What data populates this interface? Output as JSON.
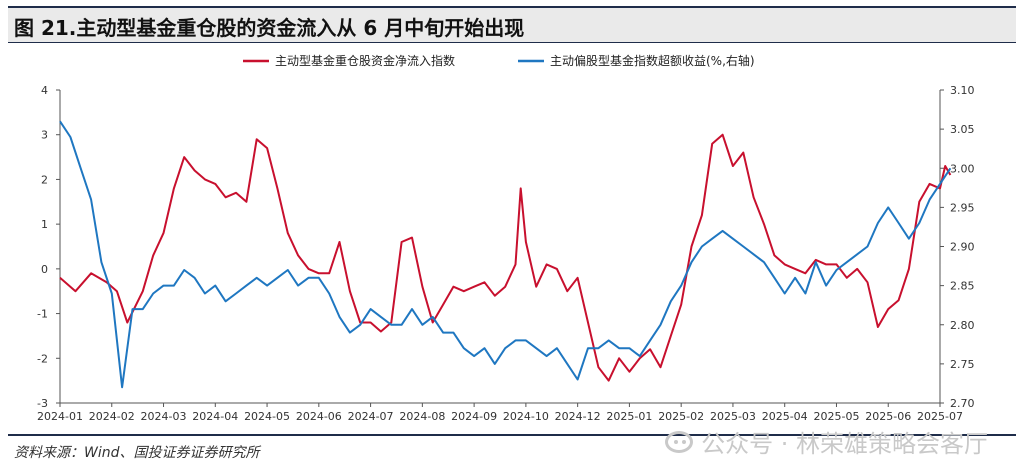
{
  "header": {
    "title": "图 21.主动型基金重仓股的资金流入从 6 月中旬开始出现"
  },
  "footer": {
    "source": "资料来源：Wind、国投证券证券研究所",
    "watermark": "公众号 · 林荣雄策略会客厅"
  },
  "colors": {
    "red": "#c8102e",
    "blue": "#1f77c1"
  },
  "chart_data": {
    "type": "line",
    "x_ticks": [
      "2024-01",
      "2024-02",
      "2024-03",
      "2024-04",
      "2024-05",
      "2024-06",
      "2024-07",
      "2024-08",
      "2024-09",
      "2024-10",
      "2024-12",
      "2025-01",
      "2025-02",
      "2025-03",
      "2025-04",
      "2025-05",
      "2025-06",
      "2025-07"
    ],
    "y_left": {
      "min": -3,
      "max": 4,
      "ticks": [
        4,
        3,
        2,
        1,
        0,
        -1,
        -2,
        -3
      ]
    },
    "y_right": {
      "min": 2.7,
      "max": 3.1,
      "ticks": [
        "3.10",
        "3.05",
        "3.00",
        "2.95",
        "2.90",
        "2.85",
        "2.80",
        "2.75",
        "2.70"
      ]
    },
    "legend_position": "top",
    "series": [
      {
        "name": "主动型基金重仓股资金净流入指数",
        "axis": "left",
        "color": "#c8102e",
        "x": [
          0,
          0.3,
          0.6,
          0.9,
          1.1,
          1.3,
          1.6,
          1.8,
          2.0,
          2.2,
          2.4,
          2.6,
          2.8,
          3.0,
          3.2,
          3.4,
          3.6,
          3.8,
          4.0,
          4.2,
          4.4,
          4.6,
          4.8,
          5.0,
          5.2,
          5.4,
          5.6,
          5.8,
          6.0,
          6.2,
          6.4,
          6.6,
          6.8,
          7.0,
          7.2,
          7.4,
          7.6,
          7.8,
          8.0,
          8.2,
          8.4,
          8.6,
          8.8,
          8.9,
          9.0,
          9.2,
          9.4,
          9.6,
          9.8,
          10.0,
          10.2,
          10.4,
          10.6,
          10.8,
          11.0,
          11.2,
          11.4,
          11.6,
          11.8,
          12.0,
          12.2,
          12.4,
          12.6,
          12.8,
          13.0,
          13.2,
          13.4,
          13.6,
          13.8,
          14.0,
          14.2,
          14.4,
          14.6,
          14.8,
          15.0,
          15.2,
          15.4,
          15.6,
          15.8,
          16.0,
          16.2,
          16.4,
          16.6,
          16.8,
          17.0,
          17.1,
          17.2
        ],
        "values": [
          -0.2,
          -0.5,
          -0.1,
          -0.3,
          -0.5,
          -1.2,
          -0.5,
          0.3,
          0.8,
          1.8,
          2.5,
          2.2,
          2.0,
          1.9,
          1.6,
          1.7,
          1.5,
          2.9,
          2.7,
          1.8,
          0.8,
          0.3,
          0.0,
          -0.1,
          -0.1,
          0.6,
          -0.5,
          -1.2,
          -1.2,
          -1.4,
          -1.2,
          0.6,
          0.7,
          -0.4,
          -1.2,
          -0.8,
          -0.4,
          -0.5,
          -0.4,
          -0.3,
          -0.6,
          -0.4,
          0.1,
          1.8,
          0.6,
          -0.4,
          0.1,
          0.0,
          -0.5,
          -0.2,
          -1.2,
          -2.2,
          -2.5,
          -2.0,
          -2.3,
          -2.0,
          -1.8,
          -2.2,
          -1.5,
          -0.8,
          0.5,
          1.2,
          2.8,
          3.0,
          2.3,
          2.6,
          1.6,
          1.0,
          0.3,
          0.1,
          0.0,
          -0.1,
          0.2,
          0.1,
          0.1,
          -0.2,
          0.0,
          -0.3,
          -1.3,
          -0.9,
          -0.7,
          0.0,
          1.5,
          1.9,
          1.8,
          2.3,
          2.1
        ]
      },
      {
        "name": "主动偏股型基金指数超额收益(%,右轴)",
        "axis": "right",
        "color": "#1f77c1",
        "x": [
          0,
          0.2,
          0.4,
          0.6,
          0.8,
          1.0,
          1.2,
          1.4,
          1.6,
          1.8,
          2.0,
          2.2,
          2.4,
          2.6,
          2.8,
          3.0,
          3.2,
          3.4,
          3.6,
          3.8,
          4.0,
          4.2,
          4.4,
          4.6,
          4.8,
          5.0,
          5.2,
          5.4,
          5.6,
          5.8,
          6.0,
          6.2,
          6.4,
          6.6,
          6.8,
          7.0,
          7.2,
          7.4,
          7.6,
          7.8,
          8.0,
          8.2,
          8.4,
          8.6,
          8.8,
          9.0,
          9.2,
          9.4,
          9.6,
          9.8,
          10.0,
          10.2,
          10.4,
          10.6,
          10.8,
          11.0,
          11.2,
          11.4,
          11.6,
          11.8,
          12.0,
          12.2,
          12.4,
          12.6,
          12.8,
          13.0,
          13.2,
          13.4,
          13.6,
          13.8,
          14.0,
          14.2,
          14.4,
          14.6,
          14.8,
          15.0,
          15.2,
          15.4,
          15.6,
          15.8,
          16.0,
          16.2,
          16.4,
          16.6,
          16.8,
          17.0,
          17.2
        ],
        "values": [
          3.06,
          3.04,
          3.0,
          2.96,
          2.88,
          2.84,
          2.72,
          2.82,
          2.82,
          2.84,
          2.85,
          2.85,
          2.87,
          2.86,
          2.84,
          2.85,
          2.83,
          2.84,
          2.85,
          2.86,
          2.85,
          2.86,
          2.87,
          2.85,
          2.86,
          2.86,
          2.84,
          2.81,
          2.79,
          2.8,
          2.82,
          2.81,
          2.8,
          2.8,
          2.82,
          2.8,
          2.81,
          2.79,
          2.79,
          2.77,
          2.76,
          2.77,
          2.75,
          2.77,
          2.78,
          2.78,
          2.77,
          2.76,
          2.77,
          2.75,
          2.73,
          2.77,
          2.77,
          2.78,
          2.77,
          2.77,
          2.76,
          2.78,
          2.8,
          2.83,
          2.85,
          2.88,
          2.9,
          2.91,
          2.92,
          2.91,
          2.9,
          2.89,
          2.88,
          2.86,
          2.84,
          2.86,
          2.84,
          2.88,
          2.85,
          2.87,
          2.88,
          2.89,
          2.9,
          2.93,
          2.95,
          2.93,
          2.91,
          2.93,
          2.96,
          2.98,
          3.0
        ]
      }
    ]
  }
}
